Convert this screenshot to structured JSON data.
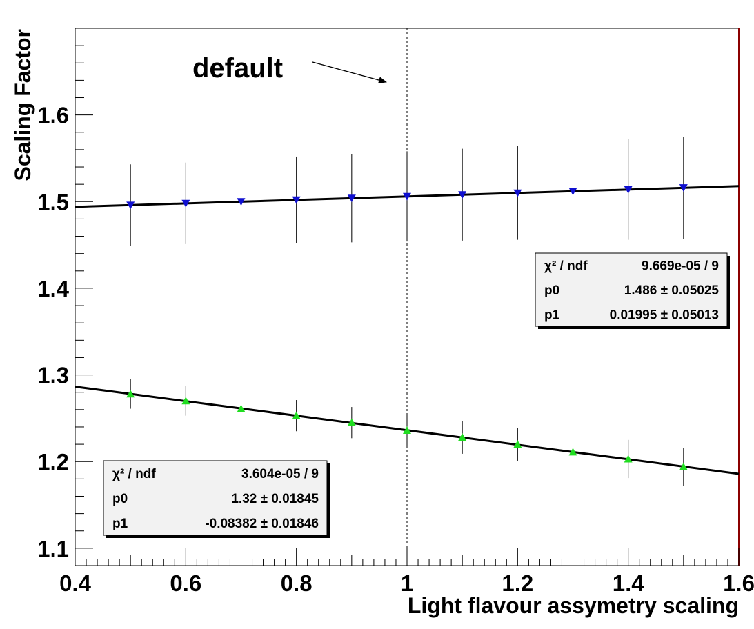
{
  "chart_data": {
    "type": "scatter",
    "title": "",
    "xlabel": "Light flavour assymetry scaling",
    "ylabel": "Scaling Factor",
    "xlim": [
      0.4,
      1.6
    ],
    "ylim": [
      1.08,
      1.7
    ],
    "x_ticks": [
      "0.4",
      "0.6",
      "0.8",
      "1",
      "1.2",
      "1.4",
      "1.6"
    ],
    "y_ticks": [
      "1.1",
      "1.2",
      "1.3",
      "1.4",
      "1.5",
      "1.6"
    ],
    "grid": false,
    "series": [
      {
        "marker": "triangle-down",
        "color": "#1010d0",
        "x": [
          0.5,
          0.6,
          0.7,
          0.8,
          0.9,
          1.0,
          1.1,
          1.2,
          1.3,
          1.4,
          1.5
        ],
        "y": [
          1.496,
          1.498,
          1.5,
          1.502,
          1.504,
          1.506,
          1.508,
          1.51,
          1.512,
          1.514,
          1.516
        ],
        "yerr": [
          0.047,
          0.047,
          0.048,
          0.05,
          0.051,
          0.052,
          0.053,
          0.054,
          0.056,
          0.058,
          0.059
        ],
        "fit": {
          "p0": 1.486,
          "p1": 0.01995,
          "x_range": [
            0.4,
            1.6
          ]
        },
        "stats": {
          "rows": [
            {
              "label": "χ² / ndf",
              "value": "9.669e-05 / 9"
            },
            {
              "label": "p0",
              "value": "1.486 ± 0.05025"
            },
            {
              "label": "p1",
              "value": "0.01995 ± 0.05013"
            }
          ]
        }
      },
      {
        "marker": "triangle-up",
        "color": "#20dd20",
        "x": [
          0.5,
          0.6,
          0.7,
          0.8,
          0.9,
          1.0,
          1.1,
          1.2,
          1.3,
          1.4,
          1.5
        ],
        "y": [
          1.278,
          1.27,
          1.261,
          1.253,
          1.245,
          1.236,
          1.228,
          1.22,
          1.211,
          1.203,
          1.194
        ],
        "yerr": [
          0.017,
          0.017,
          0.017,
          0.018,
          0.018,
          0.019,
          0.019,
          0.019,
          0.021,
          0.022,
          0.022
        ],
        "fit": {
          "p0": 1.32,
          "p1": -0.08382,
          "x_range": [
            0.4,
            1.6
          ]
        },
        "stats": {
          "rows": [
            {
              "label": "χ² / ndf",
              "value": "3.604e-05 / 9"
            },
            {
              "label": "p0",
              "value": "1.32 ± 0.01845"
            },
            {
              "label": "p1",
              "value": "-0.08382 ± 0.01846"
            }
          ]
        }
      }
    ],
    "annotations": [
      {
        "text": "default",
        "arrow_to_x": 1.0,
        "vertical_dashed_line_x": 1.0
      }
    ]
  }
}
